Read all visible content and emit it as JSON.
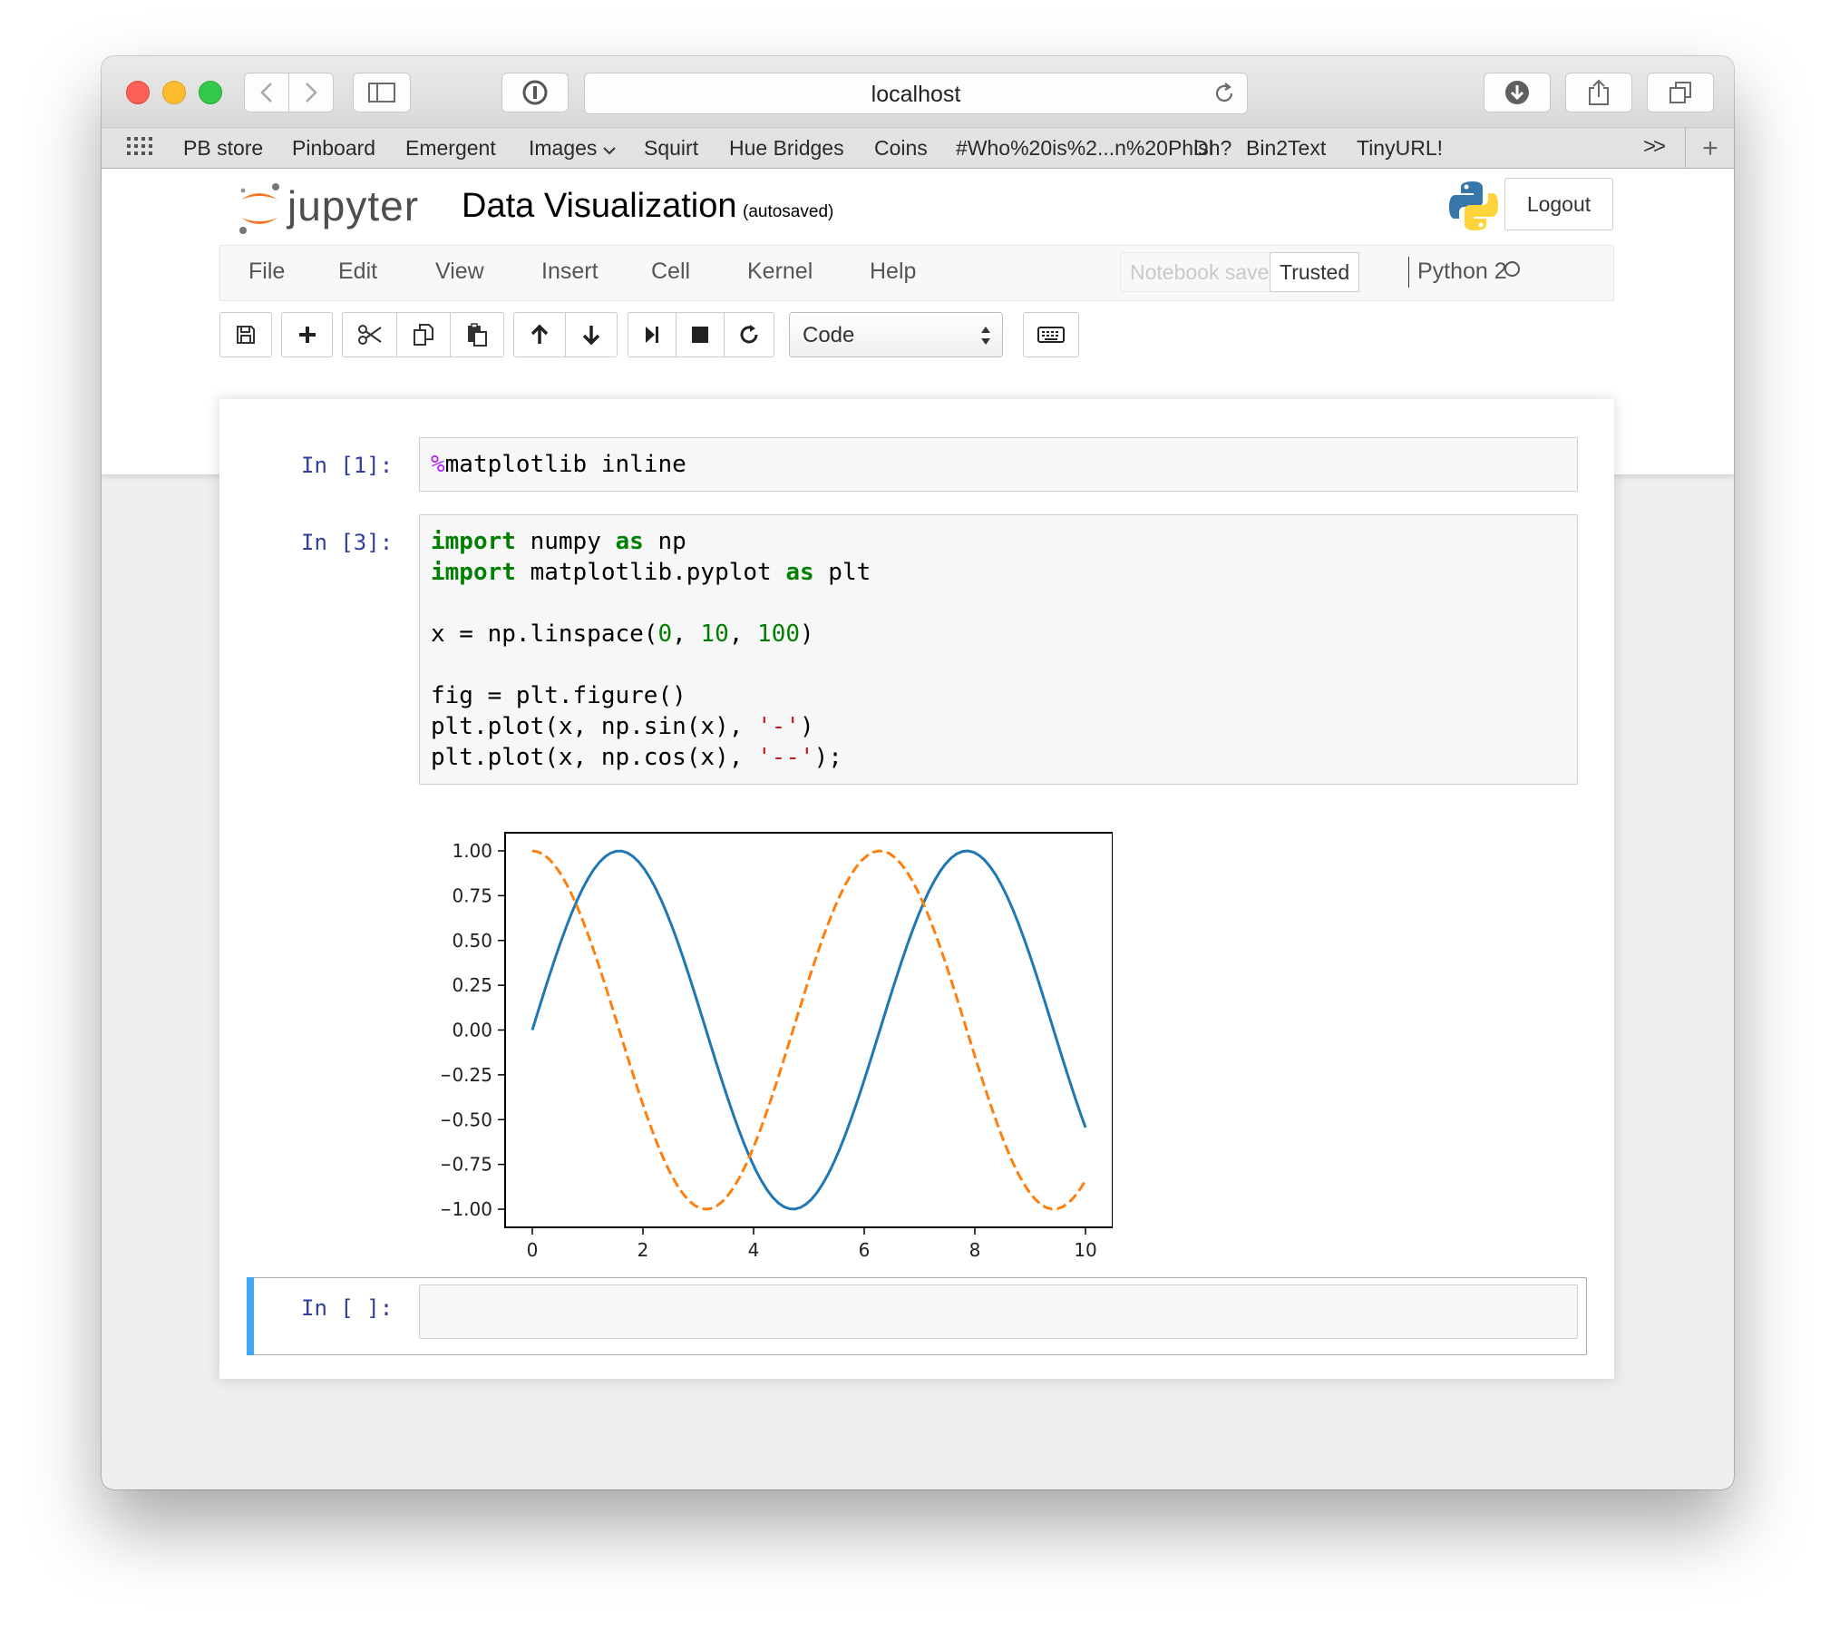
{
  "browser": {
    "url": "localhost",
    "bookmarks": [
      "PB store",
      "Pinboard",
      "Emergent",
      "Images",
      "Squirt",
      "Hue Bridges",
      "Coins",
      "#Who%20is%2...n%20Phish?",
      "DI",
      "Bin2Text",
      "TinyURL!"
    ],
    "bookmarks_more": ">>",
    "new_tab": "+"
  },
  "header": {
    "logo_text": "jupyter",
    "notebook_title": "Data Visualization",
    "autosave_status": "(autosaved)",
    "logout_label": "Logout"
  },
  "menu": {
    "items": [
      "File",
      "Edit",
      "View",
      "Insert",
      "Cell",
      "Kernel",
      "Help"
    ],
    "notebook_saved": "Notebook saved",
    "trusted": "Trusted",
    "kernel_name": "Python 2"
  },
  "toolbar": {
    "cell_type": "Code",
    "buttons": [
      "save-icon",
      "plus-icon",
      "scissors-icon",
      "copy-icon",
      "paste-icon",
      "arrow-up-icon",
      "arrow-down-icon",
      "step-forward-icon",
      "stop-icon",
      "refresh-icon",
      "keyboard-icon"
    ]
  },
  "cells": {
    "cell1": {
      "prompt": "In [1]:",
      "magic": "%",
      "code": "matplotlib inline"
    },
    "cell2": {
      "prompt": "In [3]:",
      "lines": [
        "import numpy as np",
        "import matplotlib.pyplot as plt",
        "",
        "x = np.linspace(0, 10, 100)",
        "",
        "fig = plt.figure()",
        "plt.plot(x, np.sin(x), '-')",
        "plt.plot(x, np.cos(x), '--');"
      ]
    },
    "cell3": {
      "prompt": "In [ ]:",
      "code": ""
    }
  },
  "chart_data": {
    "type": "line",
    "xlim": [
      0,
      10
    ],
    "ylim": [
      -1.0,
      1.0
    ],
    "xticks": [
      "0",
      "2",
      "4",
      "6",
      "8",
      "10"
    ],
    "yticks": [
      "1.00",
      "0.75",
      "0.50",
      "0.25",
      "0.00",
      "−0.25",
      "−0.50",
      "−0.75",
      "−1.00"
    ],
    "series": [
      {
        "function": "sin",
        "style": "solid",
        "color": "#1f77b4",
        "x_start": 0,
        "x_end": 10,
        "points": 100
      },
      {
        "function": "cos",
        "style": "dashed",
        "color": "#ff7f0e",
        "x_start": 0,
        "x_end": 10,
        "points": 100
      }
    ],
    "grid": false
  }
}
